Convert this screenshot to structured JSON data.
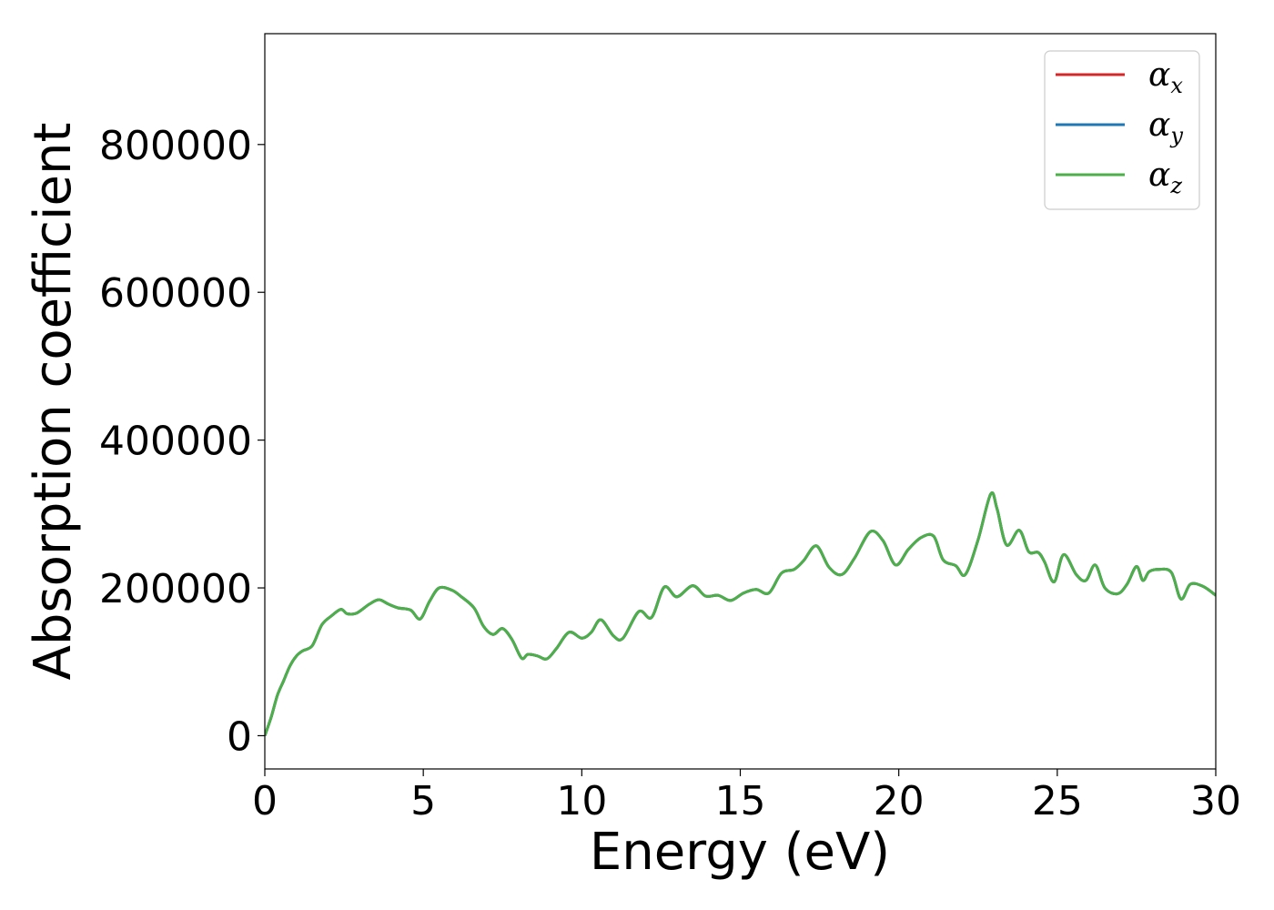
{
  "chart_data": {
    "type": "line",
    "title": "",
    "xlabel": "Energy (eV)",
    "ylabel": "Absorption coefficient",
    "xlim": [
      0,
      30
    ],
    "ylim": [
      -45000,
      950000
    ],
    "x_ticks": [
      0,
      5,
      10,
      15,
      20,
      25,
      30
    ],
    "x_tick_labels": [
      "0",
      "5",
      "10",
      "15",
      "20",
      "25",
      "30"
    ],
    "y_ticks": [
      0,
      200000,
      400000,
      600000,
      800000
    ],
    "y_tick_labels": [
      "0",
      "200000",
      "400000",
      "600000",
      "800000"
    ],
    "grid": false,
    "legend_position": "top-right",
    "legend": [
      {
        "symbol": "α",
        "subscript": "x",
        "color": "#d62728"
      },
      {
        "symbol": "α",
        "subscript": "y",
        "color": "#1f77b4"
      },
      {
        "symbol": "α",
        "subscript": "z",
        "color": "#4daf4a"
      }
    ],
    "x": [
      0,
      0.2,
      0.4,
      0.6,
      0.8,
      1.0,
      1.2,
      1.5,
      1.8,
      2.1,
      2.4,
      2.6,
      2.9,
      3.3,
      3.6,
      3.9,
      4.2,
      4.6,
      4.9,
      5.2,
      5.5,
      5.9,
      6.2,
      6.6,
      6.9,
      7.2,
      7.5,
      7.8,
      8.1,
      8.3,
      8.6,
      8.9,
      9.2,
      9.6,
      10.0,
      10.3,
      10.6,
      11.0,
      11.3,
      11.8,
      12.2,
      12.6,
      13.0,
      13.5,
      13.9,
      14.3,
      14.7,
      15.1,
      15.5,
      15.9,
      16.3,
      16.7,
      17.0,
      17.4,
      17.8,
      18.2,
      18.6,
      19.1,
      19.5,
      19.9,
      20.3,
      20.7,
      21.1,
      21.4,
      21.8,
      22.1,
      22.5,
      22.9,
      23.1,
      23.4,
      23.8,
      24.1,
      24.4,
      24.6,
      24.9,
      25.2,
      25.6,
      25.9,
      26.2,
      26.5,
      26.9,
      27.2,
      27.5,
      27.7,
      27.9,
      28.2,
      28.6,
      28.9,
      29.2,
      29.6,
      30.0
    ],
    "series": [
      {
        "color": "#d62728",
        "values": [
          0,
          25000,
          55000,
          75000,
          95000,
          108000,
          115000,
          122000,
          150000,
          162000,
          171000,
          165000,
          166000,
          178000,
          184000,
          178000,
          173000,
          170000,
          158000,
          182000,
          200000,
          197000,
          188000,
          173000,
          148000,
          137000,
          145000,
          130000,
          105000,
          110000,
          108000,
          104000,
          118000,
          140000,
          132000,
          140000,
          157000,
          135000,
          132000,
          168000,
          160000,
          201000,
          188000,
          203000,
          189000,
          190000,
          183000,
          193000,
          198000,
          193000,
          220000,
          225000,
          237000,
          257000,
          228000,
          218000,
          240000,
          276000,
          264000,
          231000,
          252000,
          268000,
          270000,
          238000,
          230000,
          218000,
          265000,
          327000,
          307000,
          258000,
          278000,
          249000,
          248000,
          235000,
          208000,
          245000,
          218000,
          210000,
          231000,
          200000,
          192000,
          205000,
          229000,
          210000,
          222000,
          225000,
          221000,
          185000,
          205000,
          202000,
          190000
        ]
      },
      {
        "color": "#1f77b4",
        "values": [
          0,
          25000,
          55000,
          75000,
          95000,
          108000,
          115000,
          122000,
          150000,
          162000,
          171000,
          165000,
          166000,
          178000,
          184000,
          178000,
          173000,
          170000,
          158000,
          182000,
          200000,
          197000,
          188000,
          173000,
          148000,
          137000,
          145000,
          130000,
          105000,
          110000,
          108000,
          104000,
          118000,
          140000,
          132000,
          140000,
          157000,
          135000,
          132000,
          168000,
          160000,
          201000,
          188000,
          203000,
          189000,
          190000,
          183000,
          193000,
          198000,
          193000,
          220000,
          225000,
          237000,
          257000,
          228000,
          218000,
          240000,
          276000,
          264000,
          231000,
          252000,
          268000,
          270000,
          238000,
          230000,
          218000,
          265000,
          327000,
          307000,
          258000,
          278000,
          249000,
          248000,
          235000,
          208000,
          245000,
          218000,
          210000,
          231000,
          200000,
          192000,
          205000,
          229000,
          210000,
          222000,
          225000,
          221000,
          185000,
          205000,
          202000,
          190000
        ]
      },
      {
        "color": "#4daf4a",
        "values": [
          0,
          25000,
          55000,
          75000,
          95000,
          108000,
          115000,
          122000,
          150000,
          162000,
          171000,
          165000,
          166000,
          178000,
          184000,
          178000,
          173000,
          170000,
          158000,
          182000,
          200000,
          197000,
          188000,
          173000,
          148000,
          137000,
          145000,
          130000,
          105000,
          110000,
          108000,
          104000,
          118000,
          140000,
          132000,
          140000,
          157000,
          135000,
          132000,
          168000,
          160000,
          201000,
          188000,
          203000,
          189000,
          190000,
          183000,
          193000,
          198000,
          193000,
          220000,
          225000,
          237000,
          257000,
          228000,
          218000,
          240000,
          276000,
          264000,
          231000,
          252000,
          268000,
          270000,
          238000,
          230000,
          218000,
          265000,
          327000,
          307000,
          258000,
          278000,
          249000,
          248000,
          235000,
          208000,
          245000,
          218000,
          210000,
          231000,
          200000,
          192000,
          205000,
          229000,
          210000,
          222000,
          225000,
          221000,
          185000,
          205000,
          202000,
          190000
        ]
      }
    ]
  }
}
